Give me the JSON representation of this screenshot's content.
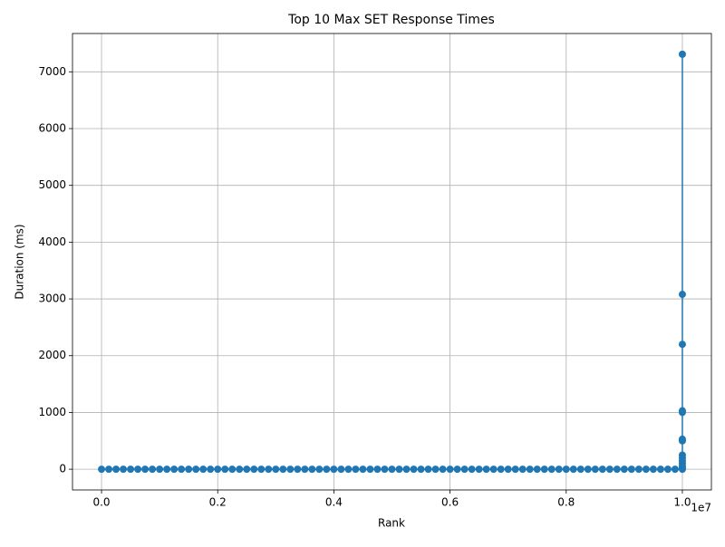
{
  "chart_data": {
    "type": "line",
    "title": "Top 10 Max SET Response Times",
    "x_label": "Rank",
    "y_label": "Duration (ms)",
    "x_offset_label": "1e7",
    "series": [
      {
        "color": "#1f77b4",
        "x": [
          0,
          125000,
          250000,
          375000,
          500000,
          625000,
          750000,
          875000,
          1000000,
          1125000,
          1250000,
          1375000,
          1500000,
          1625000,
          1750000,
          1875000,
          2000000,
          2125000,
          2250000,
          2375000,
          2500000,
          2625000,
          2750000,
          2875000,
          3000000,
          3125000,
          3250000,
          3375000,
          3500000,
          3625000,
          3750000,
          3875000,
          4000000,
          4125000,
          4250000,
          4375000,
          4500000,
          4625000,
          4750000,
          4875000,
          5000000,
          5125000,
          5250000,
          5375000,
          5500000,
          5625000,
          5750000,
          5875000,
          6000000,
          6125000,
          6250000,
          6375000,
          6500000,
          6625000,
          6750000,
          6875000,
          7000000,
          7125000,
          7250000,
          7375000,
          7500000,
          7625000,
          7750000,
          7875000,
          8000000,
          8125000,
          8250000,
          8375000,
          8500000,
          8625000,
          8750000,
          8875000,
          9000000,
          9125000,
          9250000,
          9375000,
          9500000,
          9625000,
          9750000,
          9875000,
          10000000,
          10000000,
          10000000,
          10000000,
          10000000,
          10000000,
          10000000,
          10000000,
          10000000,
          10000000,
          10000000,
          10000000,
          10000000,
          10000000
        ],
        "values": [
          0,
          0,
          0,
          0,
          0,
          0,
          0,
          0,
          0,
          0,
          0,
          0,
          0,
          0,
          0,
          0,
          0,
          0,
          0,
          0,
          0,
          0,
          0,
          0,
          0,
          0,
          0,
          0,
          0,
          0,
          0,
          0,
          0,
          0,
          0,
          0,
          0,
          0,
          0,
          0,
          0,
          0,
          0,
          0,
          0,
          0,
          0,
          0,
          0,
          0,
          0,
          0,
          0,
          0,
          0,
          0,
          0,
          0,
          0,
          0,
          0,
          0,
          0,
          0,
          0,
          0,
          0,
          0,
          0,
          0,
          0,
          0,
          0,
          0,
          0,
          0,
          0,
          0,
          0,
          0,
          0,
          20,
          50,
          100,
          150,
          200,
          250,
          500,
          530,
          1000,
          1030,
          2200,
          3080,
          7310
        ]
      }
    ],
    "xlim": [
      -500000,
      10500000
    ],
    "xticks": [
      {
        "value": 0,
        "label": "0.0"
      },
      {
        "value": 2000000,
        "label": "0.2"
      },
      {
        "value": 4000000,
        "label": "0.4"
      },
      {
        "value": 6000000,
        "label": "0.6"
      },
      {
        "value": 8000000,
        "label": "0.8"
      },
      {
        "value": 10000000,
        "label": "1.0"
      }
    ],
    "ylim": [
      -365,
      7675
    ],
    "yticks": [
      0,
      1000,
      2000,
      3000,
      4000,
      5000,
      6000,
      7000
    ],
    "grid": true
  }
}
